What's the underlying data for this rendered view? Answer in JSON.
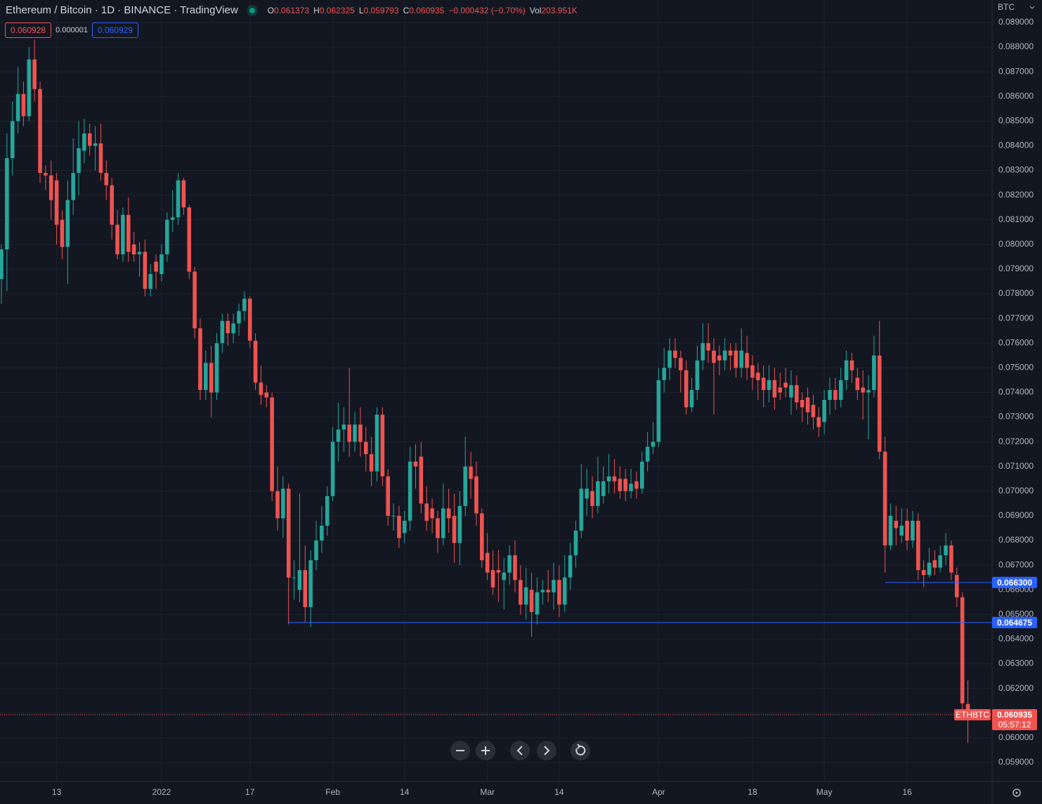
{
  "chart_data": {
    "type": "candlestick",
    "title": "Ethereum / Bitcoin · 1D · BINANCE · TradingView",
    "ohlc_labels": [
      "O",
      "H",
      "L",
      "C"
    ],
    "change": "−0.000432 (−0.70%)",
    "volume_label": "Vol",
    "volume": "203.951K",
    "bid": "0.060928",
    "spread": "0.000001",
    "ask": "0.060929",
    "currency": "BTC",
    "symbol": "ETHBTC",
    "countdown": "05:57:12",
    "up_color": "#26a69a",
    "down_color": "#ef5350",
    "grid": true,
    "categories": [
      null,
      null,
      null,
      null,
      null,
      null,
      null,
      null,
      null,
      null,
      "13",
      null,
      null,
      null,
      null,
      null,
      null,
      null,
      null,
      null,
      null,
      null,
      null,
      null,
      null,
      null,
      null,
      null,
      null,
      "2022",
      null,
      null,
      null,
      null,
      null,
      null,
      null,
      null,
      null,
      null,
      null,
      null,
      null,
      null,
      null,
      "17",
      null,
      null,
      null,
      null,
      null,
      null,
      null,
      null,
      null,
      null,
      null,
      null,
      null,
      null,
      "Feb",
      null,
      null,
      null,
      null,
      null,
      null,
      null,
      null,
      null,
      null,
      null,
      null,
      "14",
      null,
      null,
      null,
      null,
      null,
      null,
      null,
      null,
      null,
      null,
      null,
      null,
      null,
      null,
      "Mar",
      null,
      null,
      null,
      null,
      null,
      null,
      null,
      null,
      null,
      null,
      null,
      null,
      "14",
      null,
      null,
      null,
      null,
      null,
      null,
      null,
      null,
      null,
      null,
      null,
      null,
      null,
      null,
      null,
      null,
      null,
      "Apr",
      null,
      null,
      null,
      null,
      null,
      null,
      null,
      null,
      null,
      null,
      null,
      null,
      null,
      null,
      null,
      null,
      "18",
      null,
      null,
      null,
      null,
      null,
      null,
      null,
      null,
      null,
      null,
      null,
      null,
      "May",
      null,
      null,
      null,
      null,
      null,
      null,
      null,
      null,
      null,
      null,
      null,
      null,
      null,
      null,
      "16",
      null,
      null,
      null,
      null,
      null,
      null,
      null,
      null,
      null,
      null,
      null
    ],
    "ohlc": [
      [
        0.0786,
        0.08,
        0.0776,
        0.0798
      ],
      [
        0.0798,
        0.0845,
        0.0781,
        0.0835
      ],
      [
        0.0835,
        0.0858,
        0.0828,
        0.085
      ],
      [
        0.085,
        0.0872,
        0.0845,
        0.0861
      ],
      [
        0.0861,
        0.0866,
        0.0848,
        0.0852
      ],
      [
        0.0852,
        0.088,
        0.085,
        0.0875
      ],
      [
        0.0875,
        0.0883,
        0.0858,
        0.0863
      ],
      [
        0.0863,
        0.0866,
        0.0825,
        0.0829
      ],
      [
        0.0829,
        0.0832,
        0.0822,
        0.0828
      ],
      [
        0.0828,
        0.0834,
        0.081,
        0.0818
      ],
      [
        0.0826,
        0.0829,
        0.08,
        0.0808
      ],
      [
        0.081,
        0.0814,
        0.0794,
        0.0799
      ],
      [
        0.0799,
        0.0826,
        0.0784,
        0.0818
      ],
      [
        0.0818,
        0.0843,
        0.0812,
        0.0829
      ],
      [
        0.0829,
        0.085,
        0.082,
        0.0839
      ],
      [
        0.0838,
        0.0851,
        0.0833,
        0.0845
      ],
      [
        0.0845,
        0.0849,
        0.0836,
        0.084
      ],
      [
        0.084,
        0.0848,
        0.083,
        0.0841
      ],
      [
        0.0841,
        0.0849,
        0.0826,
        0.0829
      ],
      [
        0.0829,
        0.0834,
        0.0818,
        0.0824
      ],
      [
        0.0824,
        0.0827,
        0.0802,
        0.0808
      ],
      [
        0.0808,
        0.0814,
        0.0794,
        0.0796
      ],
      [
        0.0796,
        0.0815,
        0.0793,
        0.0812
      ],
      [
        0.0812,
        0.0819,
        0.0793,
        0.0797
      ],
      [
        0.08,
        0.0805,
        0.0793,
        0.0796
      ],
      [
        0.0796,
        0.0801,
        0.0787,
        0.0797
      ],
      [
        0.0797,
        0.0802,
        0.0779,
        0.0782
      ],
      [
        0.0782,
        0.0792,
        0.0779,
        0.0788
      ],
      [
        0.0793,
        0.0796,
        0.0782,
        0.0789
      ],
      [
        0.0788,
        0.08,
        0.0785,
        0.0796
      ],
      [
        0.0796,
        0.0813,
        0.0793,
        0.081
      ],
      [
        0.081,
        0.0822,
        0.0805,
        0.0811
      ],
      [
        0.0811,
        0.0829,
        0.0808,
        0.0826
      ],
      [
        0.0826,
        0.0827,
        0.0812,
        0.0815
      ],
      [
        0.0815,
        0.0816,
        0.0786,
        0.0789
      ],
      [
        0.0789,
        0.0791,
        0.0762,
        0.0766
      ],
      [
        0.0766,
        0.077,
        0.0737,
        0.0741
      ],
      [
        0.0741,
        0.0757,
        0.0737,
        0.0752
      ],
      [
        0.0752,
        0.0759,
        0.073,
        0.074
      ],
      [
        0.074,
        0.0764,
        0.0737,
        0.076
      ],
      [
        0.076,
        0.0772,
        0.0756,
        0.0769
      ],
      [
        0.0769,
        0.0772,
        0.0759,
        0.0764
      ],
      [
        0.0764,
        0.0772,
        0.076,
        0.0768
      ],
      [
        0.0768,
        0.0776,
        0.0763,
        0.0773
      ],
      [
        0.0773,
        0.0781,
        0.0769,
        0.0778
      ],
      [
        0.0778,
        0.0779,
        0.0758,
        0.0761
      ],
      [
        0.0761,
        0.0764,
        0.0741,
        0.0744
      ],
      [
        0.0744,
        0.0751,
        0.0735,
        0.0739
      ],
      [
        0.074,
        0.0743,
        0.0734,
        0.0738
      ],
      [
        0.0738,
        0.074,
        0.0696,
        0.07
      ],
      [
        0.07,
        0.071,
        0.0684,
        0.0689
      ],
      [
        0.0689,
        0.0706,
        0.0681,
        0.0701
      ],
      [
        0.0701,
        0.0703,
        0.0646,
        0.0665
      ],
      [
        0.0665,
        0.0672,
        0.0656,
        0.0665
      ],
      [
        0.066,
        0.0699,
        0.0655,
        0.0668
      ],
      [
        0.0668,
        0.0678,
        0.0647,
        0.0653
      ],
      [
        0.0653,
        0.0676,
        0.0645,
        0.0672
      ],
      [
        0.0672,
        0.0688,
        0.0668,
        0.068
      ],
      [
        0.068,
        0.0694,
        0.0675,
        0.0686
      ],
      [
        0.0686,
        0.0702,
        0.0682,
        0.0698
      ],
      [
        0.0698,
        0.0726,
        0.0696,
        0.072
      ],
      [
        0.072,
        0.0736,
        0.0712,
        0.0725
      ],
      [
        0.0725,
        0.0734,
        0.0716,
        0.0727
      ],
      [
        0.0727,
        0.075,
        0.0714,
        0.072
      ],
      [
        0.072,
        0.0732,
        0.0716,
        0.0727
      ],
      [
        0.0727,
        0.0734,
        0.0714,
        0.072
      ],
      [
        0.072,
        0.0726,
        0.0708,
        0.0715
      ],
      [
        0.0715,
        0.0722,
        0.0702,
        0.0708
      ],
      [
        0.0708,
        0.0734,
        0.0704,
        0.0731
      ],
      [
        0.0731,
        0.0734,
        0.0702,
        0.0706
      ],
      [
        0.0706,
        0.0709,
        0.0686,
        0.069
      ],
      [
        0.069,
        0.0695,
        0.0684,
        0.069
      ],
      [
        0.069,
        0.0694,
        0.0677,
        0.0681
      ],
      [
        0.0683,
        0.0692,
        0.0679,
        0.0688
      ],
      [
        0.0688,
        0.0718,
        0.0684,
        0.0712
      ],
      [
        0.0712,
        0.0719,
        0.0701,
        0.071
      ],
      [
        0.0714,
        0.072,
        0.0691,
        0.0695
      ],
      [
        0.0695,
        0.0702,
        0.0684,
        0.0688
      ],
      [
        0.0693,
        0.0697,
        0.0683,
        0.0689
      ],
      [
        0.0689,
        0.0692,
        0.0675,
        0.0681
      ],
      [
        0.0681,
        0.0703,
        0.0678,
        0.0693
      ],
      [
        0.0693,
        0.0701,
        0.0683,
        0.0689
      ],
      [
        0.069,
        0.0699,
        0.0671,
        0.0679
      ],
      [
        0.0679,
        0.07,
        0.067,
        0.0694
      ],
      [
        0.0694,
        0.0722,
        0.069,
        0.071
      ],
      [
        0.071,
        0.0716,
        0.0697,
        0.0705
      ],
      [
        0.0706,
        0.0712,
        0.0686,
        0.0691
      ],
      [
        0.0691,
        0.0693,
        0.0669,
        0.0672
      ],
      [
        0.0675,
        0.0683,
        0.0664,
        0.0667
      ],
      [
        0.0668,
        0.0676,
        0.0658,
        0.0661
      ],
      [
        0.0668,
        0.0676,
        0.0655,
        0.0667
      ],
      [
        0.0664,
        0.0673,
        0.0652,
        0.0667
      ],
      [
        0.0667,
        0.0678,
        0.0662,
        0.0674
      ],
      [
        0.0674,
        0.068,
        0.0659,
        0.0664
      ],
      [
        0.0664,
        0.067,
        0.065,
        0.0654
      ],
      [
        0.0654,
        0.0669,
        0.0648,
        0.0661
      ],
      [
        0.066,
        0.0667,
        0.0641,
        0.0651
      ],
      [
        0.065,
        0.0665,
        0.0646,
        0.0659
      ],
      [
        0.0659,
        0.0664,
        0.0654,
        0.066
      ],
      [
        0.066,
        0.0668,
        0.0655,
        0.0659
      ],
      [
        0.0659,
        0.0671,
        0.0652,
        0.0664
      ],
      [
        0.0664,
        0.067,
        0.0649,
        0.0654
      ],
      [
        0.0654,
        0.0674,
        0.0651,
        0.0665
      ],
      [
        0.0665,
        0.0679,
        0.066,
        0.0674
      ],
      [
        0.0674,
        0.0688,
        0.0669,
        0.0684
      ],
      [
        0.0684,
        0.0711,
        0.0681,
        0.0701
      ],
      [
        0.0697,
        0.0709,
        0.069,
        0.0701
      ],
      [
        0.07,
        0.0706,
        0.0689,
        0.0694
      ],
      [
        0.0694,
        0.0714,
        0.0691,
        0.0704
      ],
      [
        0.0698,
        0.071,
        0.0695,
        0.0704
      ],
      [
        0.0704,
        0.0715,
        0.0699,
        0.0706
      ],
      [
        0.0706,
        0.0713,
        0.0699,
        0.0704
      ],
      [
        0.0705,
        0.071,
        0.0697,
        0.07
      ],
      [
        0.0705,
        0.0709,
        0.0696,
        0.07
      ],
      [
        0.07,
        0.0709,
        0.0697,
        0.0703
      ],
      [
        0.0704,
        0.0708,
        0.0697,
        0.0701
      ],
      [
        0.0701,
        0.0716,
        0.0699,
        0.0712
      ],
      [
        0.0712,
        0.0724,
        0.0708,
        0.0718
      ],
      [
        0.0718,
        0.0728,
        0.0715,
        0.072
      ],
      [
        0.072,
        0.075,
        0.0718,
        0.0745
      ],
      [
        0.0745,
        0.0758,
        0.074,
        0.075
      ],
      [
        0.075,
        0.0762,
        0.0745,
        0.0757
      ],
      [
        0.0757,
        0.0762,
        0.075,
        0.0754
      ],
      [
        0.0754,
        0.0757,
        0.074,
        0.0749
      ],
      [
        0.0749,
        0.0753,
        0.0731,
        0.0734
      ],
      [
        0.0734,
        0.0746,
        0.0732,
        0.0741
      ],
      [
        0.0741,
        0.0759,
        0.0737,
        0.0753
      ],
      [
        0.0753,
        0.0768,
        0.0749,
        0.076
      ],
      [
        0.076,
        0.0768,
        0.0752,
        0.0757
      ],
      [
        0.0757,
        0.0762,
        0.0731,
        0.0752
      ],
      [
        0.0755,
        0.0759,
        0.0747,
        0.0753
      ],
      [
        0.0753,
        0.0762,
        0.0749,
        0.0757
      ],
      [
        0.0757,
        0.076,
        0.0749,
        0.0755
      ],
      [
        0.0757,
        0.076,
        0.0746,
        0.075
      ],
      [
        0.075,
        0.0766,
        0.0746,
        0.0757
      ],
      [
        0.0756,
        0.0763,
        0.0745,
        0.075
      ],
      [
        0.0751,
        0.0755,
        0.0741,
        0.0746
      ],
      [
        0.0748,
        0.0752,
        0.0737,
        0.0745
      ],
      [
        0.0746,
        0.0751,
        0.0734,
        0.0741
      ],
      [
        0.0741,
        0.0751,
        0.0736,
        0.0745
      ],
      [
        0.0745,
        0.075,
        0.0733,
        0.0738
      ],
      [
        0.0742,
        0.0748,
        0.0737,
        0.074
      ],
      [
        0.0744,
        0.075,
        0.0738,
        0.0742
      ],
      [
        0.0738,
        0.0749,
        0.0731,
        0.0743
      ],
      [
        0.0743,
        0.0747,
        0.0733,
        0.0736
      ],
      [
        0.0737,
        0.074,
        0.0728,
        0.0734
      ],
      [
        0.0738,
        0.0742,
        0.0727,
        0.0732
      ],
      [
        0.0735,
        0.0739,
        0.0725,
        0.073
      ],
      [
        0.073,
        0.0734,
        0.0722,
        0.0726
      ],
      [
        0.0728,
        0.0741,
        0.0723,
        0.0737
      ],
      [
        0.0737,
        0.0746,
        0.0731,
        0.0741
      ],
      [
        0.0741,
        0.0746,
        0.0733,
        0.0737
      ],
      [
        0.0737,
        0.075,
        0.0734,
        0.0745
      ],
      [
        0.0745,
        0.0757,
        0.0741,
        0.0753
      ],
      [
        0.0753,
        0.0756,
        0.0744,
        0.0749
      ],
      [
        0.0746,
        0.075,
        0.0737,
        0.0741
      ],
      [
        0.0742,
        0.0749,
        0.0729,
        0.074
      ],
      [
        0.074,
        0.0747,
        0.0721,
        0.0741
      ],
      [
        0.0741,
        0.0763,
        0.0738,
        0.0755
      ],
      [
        0.0755,
        0.0769,
        0.0713,
        0.0716
      ],
      [
        0.0716,
        0.0722,
        0.0667,
        0.0678
      ],
      [
        0.0678,
        0.0695,
        0.0676,
        0.069
      ],
      [
        0.0688,
        0.0694,
        0.0678,
        0.0685
      ],
      [
        0.0682,
        0.0693,
        0.0679,
        0.0686
      ],
      [
        0.0688,
        0.0693,
        0.0676,
        0.068
      ],
      [
        0.068,
        0.0692,
        0.0677,
        0.0688
      ],
      [
        0.0688,
        0.0691,
        0.0664,
        0.0668
      ],
      [
        0.0668,
        0.0672,
        0.0661,
        0.0666
      ],
      [
        0.0666,
        0.0677,
        0.0665,
        0.0671
      ],
      [
        0.0672,
        0.0676,
        0.0666,
        0.0669
      ],
      [
        0.0669,
        0.0678,
        0.0667,
        0.0674
      ],
      [
        0.0674,
        0.0683,
        0.067,
        0.0678
      ],
      [
        0.0678,
        0.068,
        0.0664,
        0.0667
      ],
      [
        0.0666,
        0.0669,
        0.0653,
        0.0657
      ],
      [
        0.0657,
        0.0659,
        0.061,
        0.0614
      ],
      [
        0.061373,
        0.062325,
        0.059793,
        0.060935
      ]
    ],
    "ylim": [
      0.05823,
      0.08991
    ],
    "yticks": [
      {
        "value": 0.059,
        "label": "0.059000"
      },
      {
        "value": 0.06,
        "label": "0.060000"
      },
      {
        "value": 0.061,
        "label": "0.061000"
      },
      {
        "value": 0.062,
        "label": "0.062000"
      },
      {
        "value": 0.063,
        "label": "0.063000"
      },
      {
        "value": 0.064,
        "label": "0.064000"
      },
      {
        "value": 0.065,
        "label": "0.065000"
      },
      {
        "value": 0.066,
        "label": "0.066000"
      },
      {
        "value": 0.067,
        "label": "0.067000"
      },
      {
        "value": 0.068,
        "label": "0.068000"
      },
      {
        "value": 0.069,
        "label": "0.069000"
      },
      {
        "value": 0.07,
        "label": "0.070000"
      },
      {
        "value": 0.071,
        "label": "0.071000"
      },
      {
        "value": 0.072,
        "label": "0.072000"
      },
      {
        "value": 0.073,
        "label": "0.073000"
      },
      {
        "value": 0.074,
        "label": "0.074000"
      },
      {
        "value": 0.075,
        "label": "0.075000"
      },
      {
        "value": 0.076,
        "label": "0.076000"
      },
      {
        "value": 0.077,
        "label": "0.077000"
      },
      {
        "value": 0.078,
        "label": "0.078000"
      },
      {
        "value": 0.079,
        "label": "0.079000"
      },
      {
        "value": 0.08,
        "label": "0.080000"
      },
      {
        "value": 0.081,
        "label": "0.081000"
      },
      {
        "value": 0.082,
        "label": "0.082000"
      },
      {
        "value": 0.083,
        "label": "0.083000"
      },
      {
        "value": 0.084,
        "label": "0.084000"
      },
      {
        "value": 0.085,
        "label": "0.085000"
      },
      {
        "value": 0.086,
        "label": "0.086000"
      },
      {
        "value": 0.087,
        "label": "0.087000"
      },
      {
        "value": 0.088,
        "label": "0.088000"
      },
      {
        "value": 0.089,
        "label": "0.089000"
      }
    ],
    "hlines": [
      {
        "value": 0.064675,
        "label": "0.064675",
        "color": "#2962ff"
      },
      {
        "value": 0.0663,
        "label": "0.066300",
        "color": "#2962ff"
      }
    ]
  }
}
